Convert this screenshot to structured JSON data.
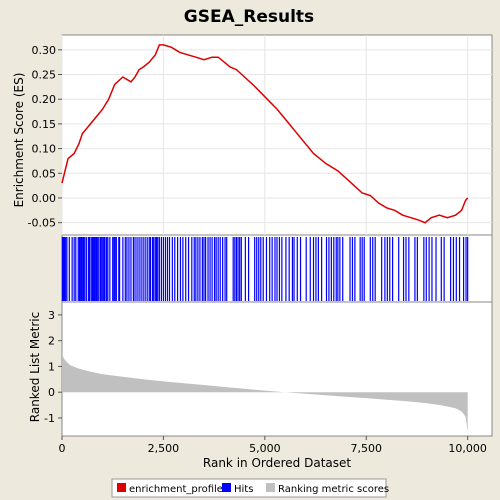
{
  "chart_data": {
    "type": "line",
    "title": "GSEA_Results",
    "xlabel": "Rank in Ordered Dataset",
    "xlim": [
      0,
      10600
    ],
    "x_ticks": [
      0,
      2500,
      5000,
      7500,
      10000
    ],
    "x_tick_labels": [
      "0",
      "2,500",
      "5,000",
      "7,500",
      "10,000"
    ],
    "top_panel": {
      "ylabel": "Enrichment Score (ES)",
      "ylim": [
        -0.075,
        0.33
      ],
      "y_ticks": [
        -0.05,
        0.0,
        0.05,
        0.1,
        0.15,
        0.2,
        0.25,
        0.3
      ],
      "y_tick_labels": [
        "-0.05",
        "0.00",
        "0.05",
        "0.10",
        "0.15",
        "0.20",
        "0.25",
        "0.30"
      ],
      "series": [
        {
          "name": "enrichment_profile",
          "color": "#dd0000",
          "x": [
            0,
            150,
            300,
            420,
            500,
            650,
            800,
            1000,
            1150,
            1300,
            1500,
            1700,
            1800,
            1900,
            2000,
            2150,
            2300,
            2400,
            2500,
            2700,
            2900,
            3100,
            3300,
            3500,
            3700,
            3850,
            4000,
            4150,
            4300,
            4500,
            4700,
            5000,
            5300,
            5600,
            5900,
            6200,
            6500,
            6800,
            7000,
            7200,
            7400,
            7600,
            7800,
            8000,
            8200,
            8400,
            8600,
            8800,
            8950,
            9100,
            9300,
            9500,
            9700,
            9850,
            9950,
            10000
          ],
          "y": [
            0.03,
            0.08,
            0.09,
            0.11,
            0.13,
            0.145,
            0.16,
            0.18,
            0.2,
            0.23,
            0.245,
            0.235,
            0.245,
            0.26,
            0.265,
            0.275,
            0.29,
            0.31,
            0.31,
            0.305,
            0.295,
            0.29,
            0.285,
            0.28,
            0.285,
            0.285,
            0.275,
            0.265,
            0.26,
            0.245,
            0.23,
            0.205,
            0.18,
            0.15,
            0.12,
            0.09,
            0.07,
            0.055,
            0.04,
            0.025,
            0.01,
            0.005,
            -0.01,
            -0.02,
            -0.025,
            -0.035,
            -0.04,
            -0.045,
            -0.05,
            -0.04,
            -0.035,
            -0.04,
            -0.035,
            -0.025,
            -0.005,
            0.0
          ]
        }
      ]
    },
    "hits_panel": {
      "name": "Hits",
      "color": "#0000ff",
      "hit_ranks": [
        10,
        35,
        60,
        90,
        120,
        180,
        250,
        300,
        340,
        400,
        430,
        460,
        480,
        500,
        530,
        560,
        600,
        650,
        680,
        720,
        750,
        780,
        800,
        830,
        850,
        880,
        910,
        950,
        980,
        1010,
        1040,
        1060,
        1100,
        1130,
        1180,
        1250,
        1280,
        1310,
        1340,
        1400,
        1420,
        1500,
        1560,
        1600,
        1650,
        1700,
        1760,
        1800,
        1850,
        1900,
        1950,
        2000,
        2050,
        2100,
        2150,
        2180,
        2230,
        2260,
        2300,
        2330,
        2360,
        2400,
        2450,
        2500,
        2550,
        2600,
        2650,
        2720,
        2780,
        2850,
        2920,
        2980,
        3050,
        3120,
        3200,
        3260,
        3300,
        3350,
        3400,
        3460,
        3500,
        3540,
        3600,
        3650,
        3700,
        3760,
        3800,
        3850,
        3900,
        3960,
        4020,
        4060,
        4220,
        4260,
        4300,
        4340,
        4380,
        4420,
        4520,
        4600,
        4750,
        4800,
        4850,
        4900,
        4960,
        5040,
        5120,
        5180,
        5250,
        5300,
        5360,
        5420,
        5520,
        5600,
        5680,
        5720,
        5800,
        5880,
        6020,
        6120,
        6200,
        6260,
        6320,
        6400,
        6520,
        6580,
        6640,
        6700,
        6760,
        6800,
        6850,
        6920,
        7100,
        7160,
        7220,
        7350,
        7400,
        7450,
        7600,
        7660,
        7720,
        7880,
        7960,
        8020,
        8080,
        8150,
        8300,
        8420,
        8480,
        8550,
        8700,
        8760,
        8920,
        8980,
        9050,
        9120,
        9220,
        9350,
        9420,
        9580,
        9650,
        9720,
        9800,
        9900,
        9960,
        10000
      ]
    },
    "bottom_panel": {
      "name": "Ranking metric scores",
      "ylabel": "Ranked List Metric",
      "ylim": [
        -1.7,
        3.5
      ],
      "y_ticks": [
        -1,
        0,
        1,
        2,
        3
      ],
      "y_tick_labels": [
        "-1",
        "0",
        "1",
        "2",
        "3"
      ],
      "color": "#c0c0c0",
      "x": [
        0,
        50,
        100,
        200,
        400,
        700,
        1000,
        1500,
        2000,
        2500,
        3000,
        3500,
        4000,
        4500,
        5000,
        5500,
        6000,
        6500,
        7000,
        7500,
        8000,
        8500,
        9000,
        9400,
        9700,
        9850,
        9950,
        10000
      ],
      "y": [
        1.5,
        1.3,
        1.2,
        1.05,
        0.92,
        0.8,
        0.7,
        0.6,
        0.5,
        0.42,
        0.35,
        0.28,
        0.2,
        0.13,
        0.06,
        0.0,
        -0.06,
        -0.12,
        -0.18,
        -0.23,
        -0.29,
        -0.35,
        -0.43,
        -0.52,
        -0.62,
        -0.75,
        -0.95,
        -1.55
      ]
    },
    "legend": {
      "placement": "bottom",
      "entries": [
        {
          "label": "enrichment_profile",
          "color": "#dd0000"
        },
        {
          "label": "Hits",
          "color": "#0000ff"
        },
        {
          "label": "Ranking metric scores",
          "color": "#c0c0c0"
        }
      ]
    }
  }
}
